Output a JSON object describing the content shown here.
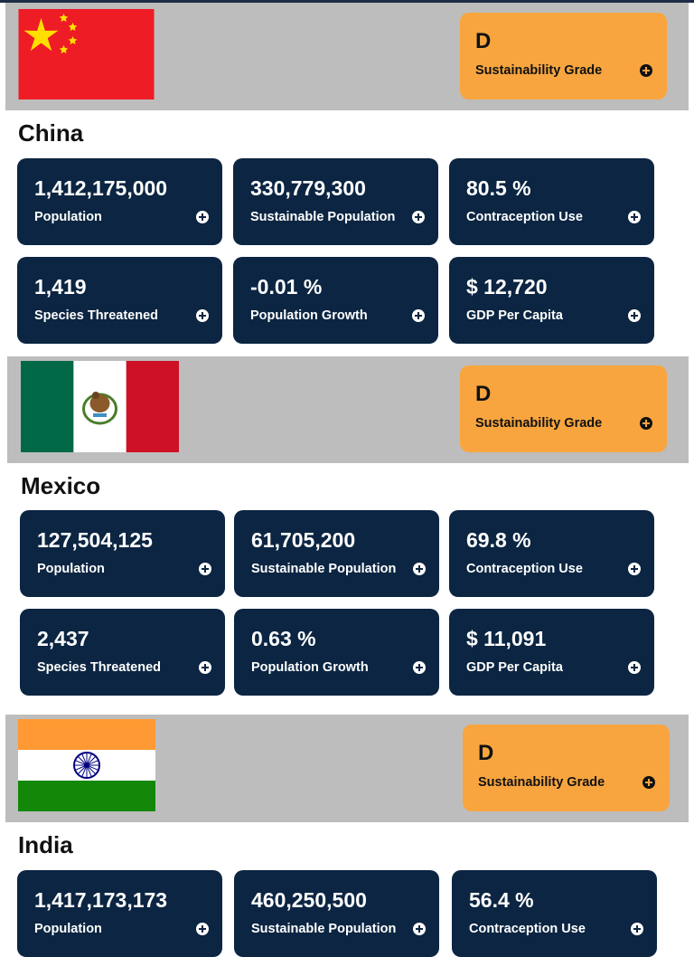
{
  "countries": [
    {
      "name": "China",
      "flag": "china-flag",
      "grade": {
        "letter": "D",
        "label": "Sustainability Grade"
      },
      "stats": [
        {
          "value": "1,412,175,000",
          "label": "Population"
        },
        {
          "value": "330,779,300",
          "label": "Sustainable Population"
        },
        {
          "value": "80.5 %",
          "label": "Contraception Use"
        },
        {
          "value": "1,419",
          "label": "Species Threatened"
        },
        {
          "value": "-0.01 %",
          "label": "Population Growth"
        },
        {
          "value": "$ 12,720",
          "label": "GDP Per Capita"
        }
      ]
    },
    {
      "name": "Mexico",
      "flag": "mexico-flag",
      "grade": {
        "letter": "D",
        "label": "Sustainability Grade"
      },
      "stats": [
        {
          "value": "127,504,125",
          "label": "Population"
        },
        {
          "value": "61,705,200",
          "label": "Sustainable Population"
        },
        {
          "value": "69.8 %",
          "label": "Contraception Use"
        },
        {
          "value": "2,437",
          "label": "Species Threatened"
        },
        {
          "value": "0.63 %",
          "label": "Population Growth"
        },
        {
          "value": "$ 11,091",
          "label": "GDP Per Capita"
        }
      ]
    },
    {
      "name": "India",
      "flag": "india-flag",
      "grade": {
        "letter": "D",
        "label": "Sustainability Grade"
      },
      "stats": [
        {
          "value": "1,417,173,173",
          "label": "Population"
        },
        {
          "value": "460,250,500",
          "label": "Sustainable Population"
        },
        {
          "value": "56.4 %",
          "label": "Contraception Use"
        }
      ]
    }
  ],
  "colors": {
    "band": "#bdbdbd",
    "card": "#0b2542",
    "grade_card": "#f8a53f",
    "top_bar": "#1c2e44"
  },
  "icons": {
    "expand": "plus-circle-icon"
  }
}
